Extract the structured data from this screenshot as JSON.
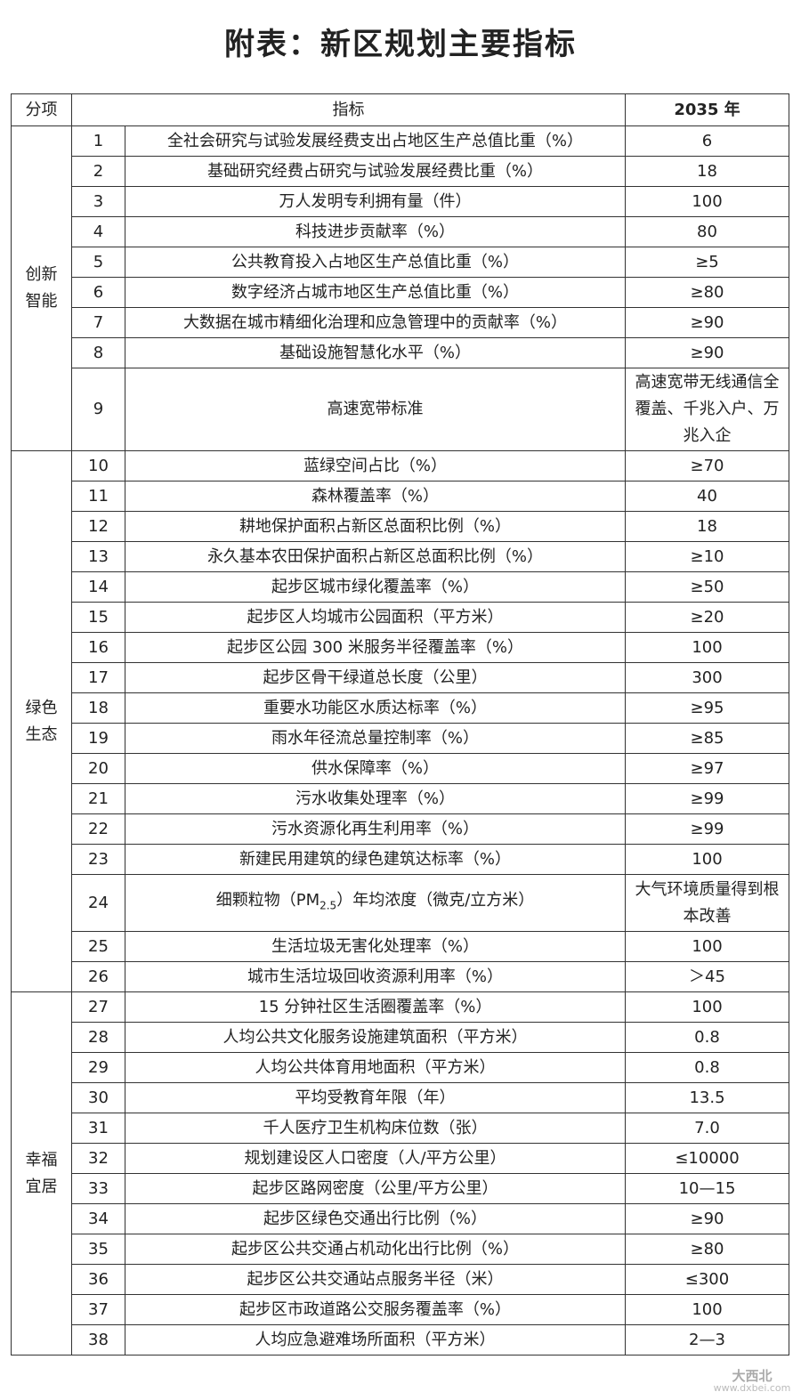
{
  "title": "附表：新区规划主要指标",
  "header": {
    "category": "分项",
    "indicator": "指标",
    "year": "2035 年"
  },
  "groups": [
    {
      "name": "创新\n智能",
      "rows": [
        {
          "no": "1",
          "indicator": "全社会研究与试验发展经费支出占地区生产总值比重（%）",
          "value": "6"
        },
        {
          "no": "2",
          "indicator": "基础研究经费占研究与试验发展经费比重（%）",
          "value": "18"
        },
        {
          "no": "3",
          "indicator": "万人发明专利拥有量（件）",
          "value": "100"
        },
        {
          "no": "4",
          "indicator": "科技进步贡献率（%）",
          "value": "80"
        },
        {
          "no": "5",
          "indicator": "公共教育投入占地区生产总值比重（%）",
          "value": "≥5"
        },
        {
          "no": "6",
          "indicator": "数字经济占城市地区生产总值比重（%）",
          "value": "≥80"
        },
        {
          "no": "7",
          "indicator": "大数据在城市精细化治理和应急管理中的贡献率（%）",
          "value": "≥90"
        },
        {
          "no": "8",
          "indicator": "基础设施智慧化水平（%）",
          "value": "≥90"
        },
        {
          "no": "9",
          "indicator": "高速宽带标准",
          "value": "高速宽带无线通信全覆盖、千兆入户、万兆入企"
        }
      ]
    },
    {
      "name": "绿色\n生态",
      "rows": [
        {
          "no": "10",
          "indicator": "蓝绿空间占比（%）",
          "value": "≥70"
        },
        {
          "no": "11",
          "indicator": "森林覆盖率（%）",
          "value": "40"
        },
        {
          "no": "12",
          "indicator": "耕地保护面积占新区总面积比例（%）",
          "value": "18"
        },
        {
          "no": "13",
          "indicator": "永久基本农田保护面积占新区总面积比例（%）",
          "value": "≥10"
        },
        {
          "no": "14",
          "indicator": "起步区城市绿化覆盖率（%）",
          "value": "≥50"
        },
        {
          "no": "15",
          "indicator": "起步区人均城市公园面积（平方米）",
          "value": "≥20"
        },
        {
          "no": "16",
          "indicator": "起步区公园 300 米服务半径覆盖率（%）",
          "value": "100"
        },
        {
          "no": "17",
          "indicator": "起步区骨干绿道总长度（公里）",
          "value": "300"
        },
        {
          "no": "18",
          "indicator": "重要水功能区水质达标率（%）",
          "value": "≥95"
        },
        {
          "no": "19",
          "indicator": "雨水年径流总量控制率（%）",
          "value": "≥85"
        },
        {
          "no": "20",
          "indicator": "供水保障率（%）",
          "value": "≥97"
        },
        {
          "no": "21",
          "indicator": "污水收集处理率（%）",
          "value": "≥99"
        },
        {
          "no": "22",
          "indicator": "污水资源化再生利用率（%）",
          "value": "≥99"
        },
        {
          "no": "23",
          "indicator": "新建民用建筑的绿色建筑达标率（%）",
          "value": "100"
        },
        {
          "no": "24",
          "indicator": "细颗粒物（PM2.5）年均浓度（微克/立方米）",
          "value": "大气环境质量得到根本改善"
        },
        {
          "no": "25",
          "indicator": "生活垃圾无害化处理率（%）",
          "value": "100"
        },
        {
          "no": "26",
          "indicator": "城市生活垃圾回收资源利用率（%）",
          "value": "＞45"
        }
      ]
    },
    {
      "name": "幸福\n宜居",
      "rows": [
        {
          "no": "27",
          "indicator": "15 分钟社区生活圈覆盖率（%）",
          "value": "100"
        },
        {
          "no": "28",
          "indicator": "人均公共文化服务设施建筑面积（平方米）",
          "value": "0.8"
        },
        {
          "no": "29",
          "indicator": "人均公共体育用地面积（平方米）",
          "value": "0.8"
        },
        {
          "no": "30",
          "indicator": "平均受教育年限（年）",
          "value": "13.5"
        },
        {
          "no": "31",
          "indicator": "千人医疗卫生机构床位数（张）",
          "value": "7.0"
        },
        {
          "no": "32",
          "indicator": "规划建设区人口密度（人/平方公里）",
          "value": "≤10000"
        },
        {
          "no": "33",
          "indicator": "起步区路网密度（公里/平方公里）",
          "value": "10—15"
        },
        {
          "no": "34",
          "indicator": "起步区绿色交通出行比例（%）",
          "value": "≥90"
        },
        {
          "no": "35",
          "indicator": "起步区公共交通占机动化出行比例（%）",
          "value": "≥80"
        },
        {
          "no": "36",
          "indicator": "起步区公共交通站点服务半径（米）",
          "value": "≤300"
        },
        {
          "no": "37",
          "indicator": "起步区市政道路公交服务覆盖率（%）",
          "value": "100"
        },
        {
          "no": "38",
          "indicator": "人均应急避难场所面积（平方米）",
          "value": "2—3"
        }
      ]
    }
  ],
  "watermark": {
    "logo_text": "大西北",
    "url": "www.dxbei.com"
  }
}
